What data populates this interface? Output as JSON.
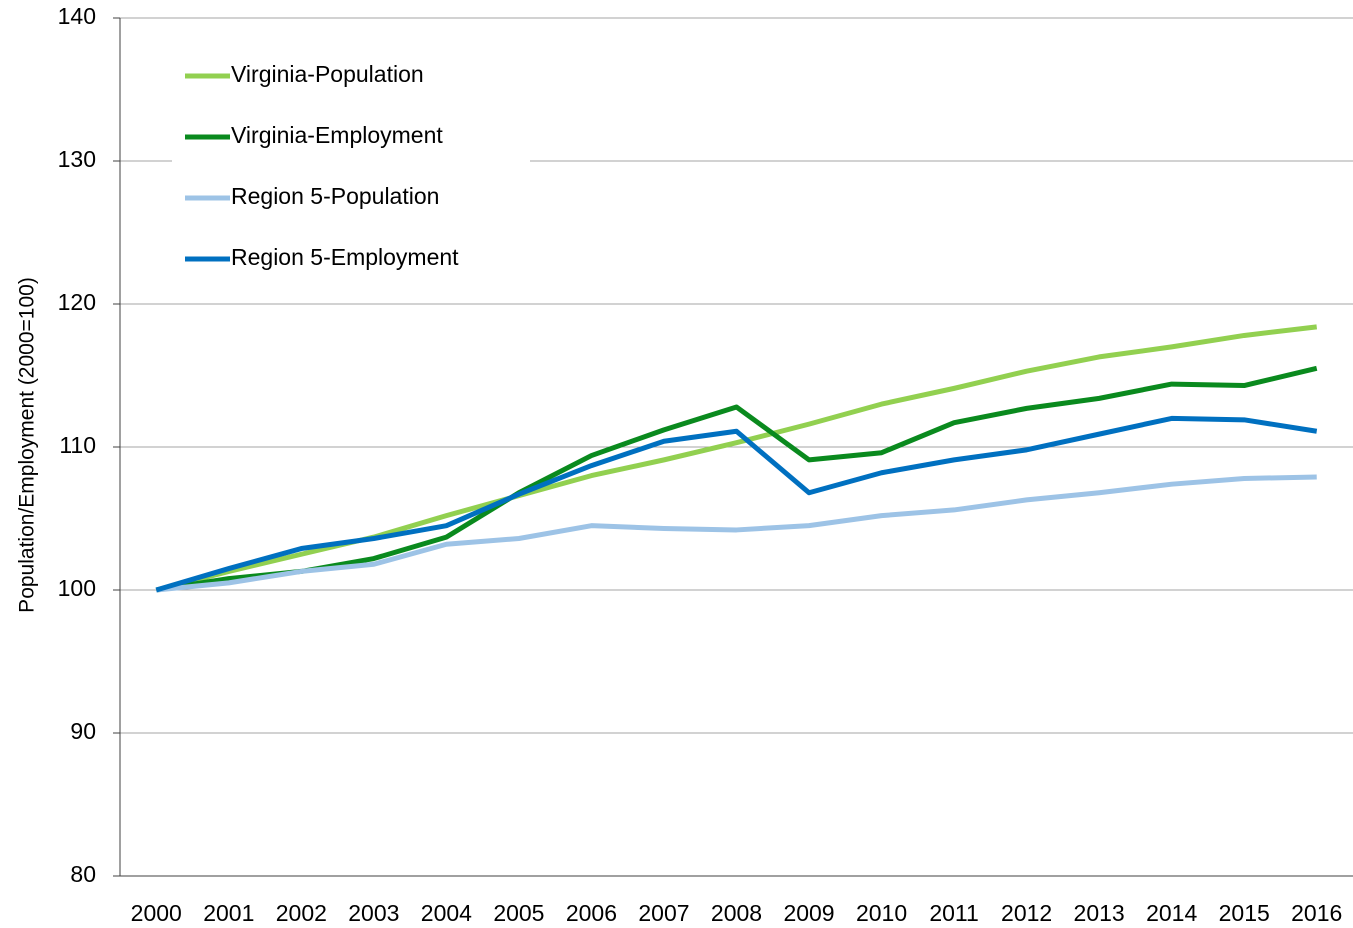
{
  "chart_data": {
    "type": "line",
    "y_label": "Population/Employment (2000=100)",
    "categories": [
      "2000",
      "2001",
      "2002",
      "2003",
      "2004",
      "2005",
      "2006",
      "2007",
      "2008",
      "2009",
      "2010",
      "2011",
      "2012",
      "2013",
      "2014",
      "2015",
      "2016"
    ],
    "series": [
      {
        "name": "Virginia-Population",
        "color": "#92d050",
        "values": [
          100,
          101.3,
          102.5,
          103.7,
          105.2,
          106.6,
          108.0,
          109.1,
          110.3,
          111.6,
          113.0,
          114.1,
          115.3,
          116.3,
          117.0,
          117.8,
          118.4
        ]
      },
      {
        "name": "Virginia-Employment",
        "color": "#0a8a1e",
        "values": [
          100,
          100.8,
          101.3,
          102.2,
          103.7,
          106.8,
          109.4,
          111.2,
          112.8,
          109.1,
          109.6,
          111.7,
          112.7,
          113.4,
          114.4,
          114.3,
          115.5
        ]
      },
      {
        "name": "Region 5-Population",
        "color": "#9dc3e6",
        "values": [
          100,
          100.5,
          101.3,
          101.8,
          103.2,
          103.6,
          104.5,
          104.3,
          104.2,
          104.5,
          105.2,
          105.6,
          106.3,
          106.8,
          107.4,
          107.8,
          107.9
        ]
      },
      {
        "name": "Region 5-Employment",
        "color": "#0070c0",
        "values": [
          100,
          101.5,
          102.9,
          103.6,
          104.5,
          106.7,
          108.7,
          110.4,
          111.1,
          106.8,
          108.2,
          109.1,
          109.8,
          110.9,
          112.0,
          111.9,
          111.1
        ]
      }
    ],
    "ylim": [
      80,
      140
    ],
    "yticks": [
      80,
      90,
      100,
      110,
      120,
      130,
      140
    ],
    "grid": true,
    "legend": "upper left"
  }
}
